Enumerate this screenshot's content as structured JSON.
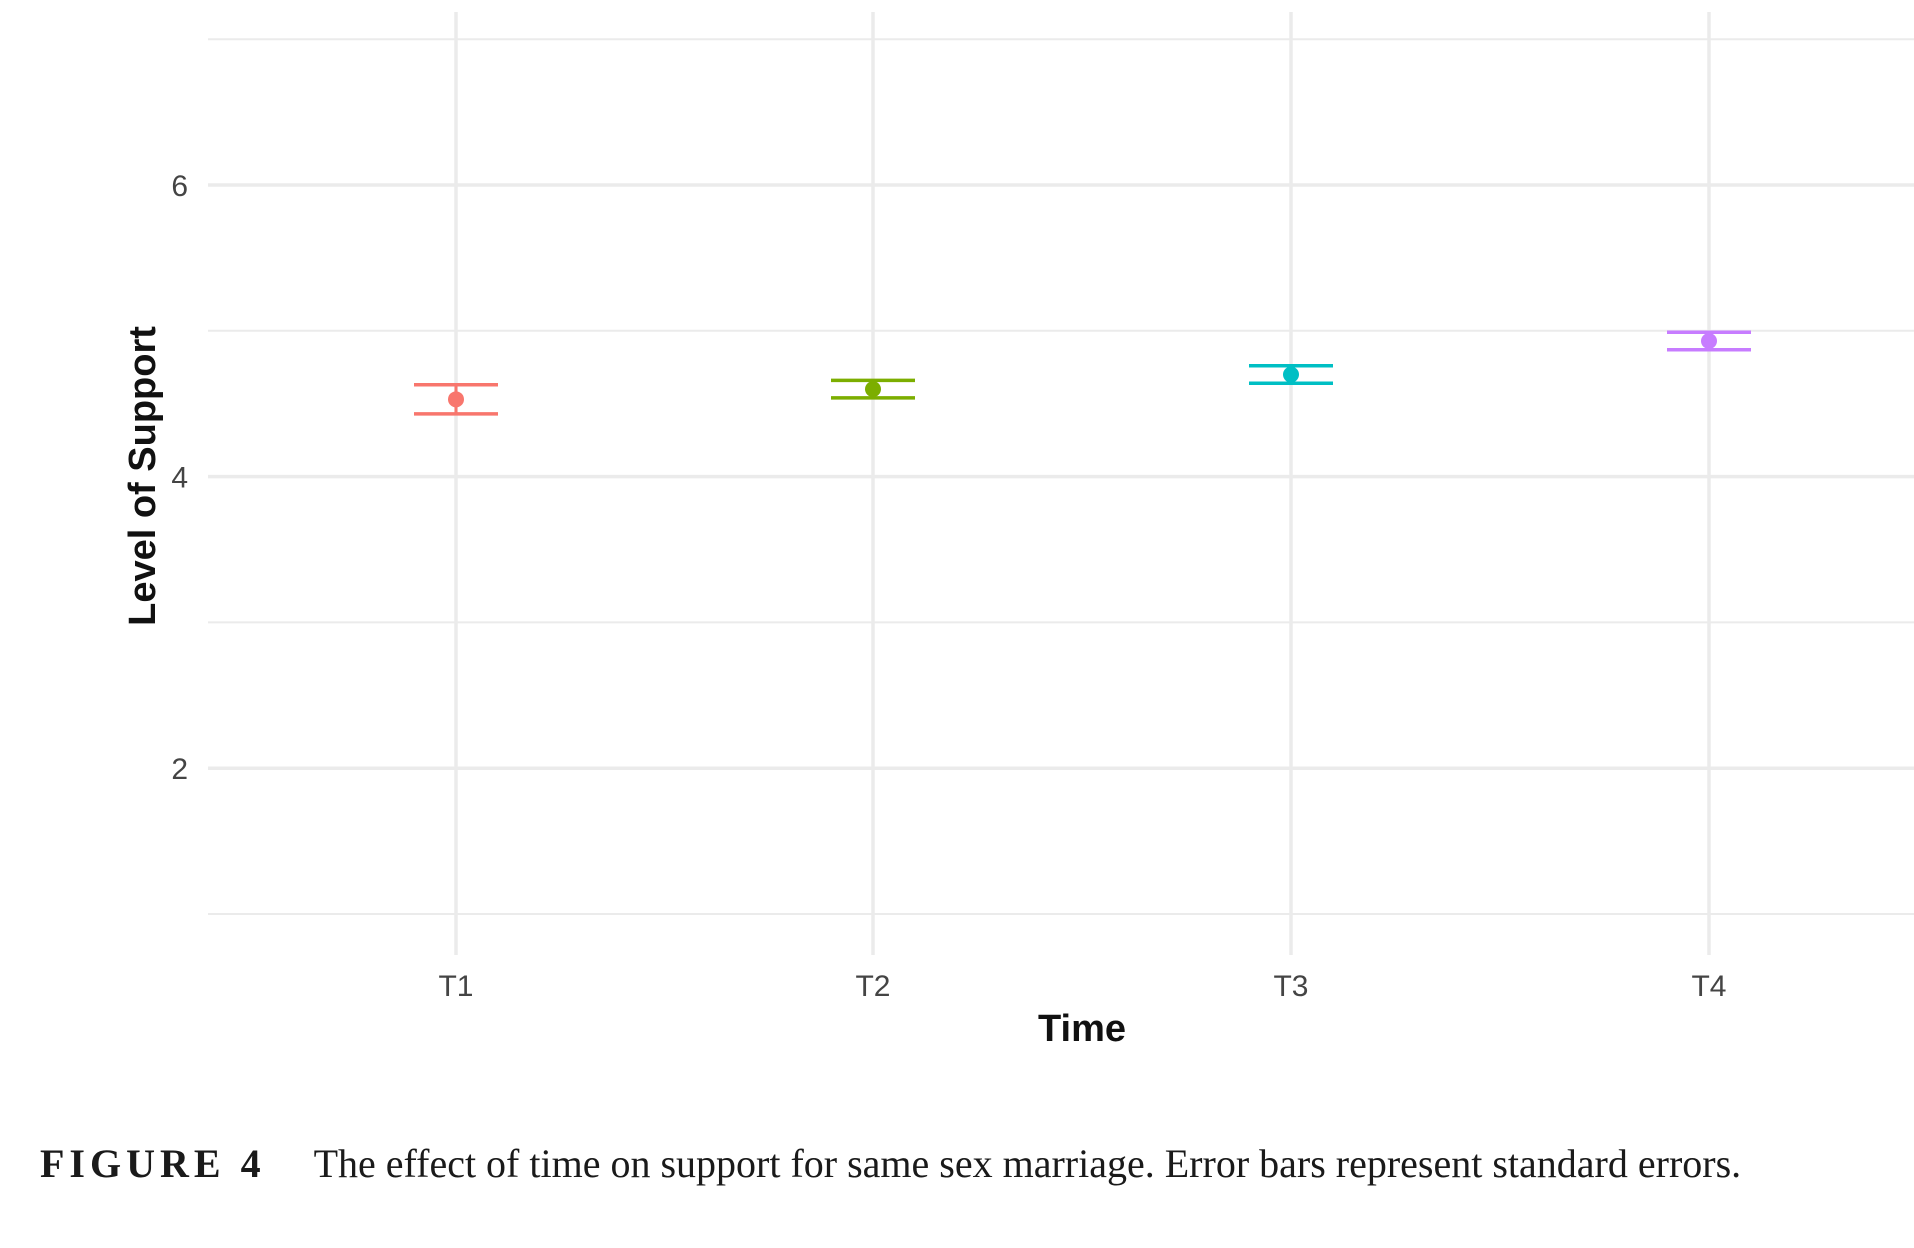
{
  "chart_data": {
    "type": "scatter",
    "categories": [
      "T1",
      "T2",
      "T3",
      "T4"
    ],
    "series": [
      {
        "points": [
          {
            "x": "T1",
            "y": 4.53,
            "lower": 4.43,
            "upper": 4.63,
            "color": "#F8766D"
          },
          {
            "x": "T2",
            "y": 4.6,
            "lower": 4.54,
            "upper": 4.66,
            "color": "#7CAE00"
          },
          {
            "x": "T3",
            "y": 4.7,
            "lower": 4.64,
            "upper": 4.76,
            "color": "#00BFC4"
          },
          {
            "x": "T4",
            "y": 4.93,
            "lower": 4.87,
            "upper": 4.99,
            "color": "#C77CFF"
          }
        ]
      }
    ],
    "xlabel": "Time",
    "ylabel": "Level of Support",
    "ylim": [
      1,
      7
    ],
    "yticks": [
      2,
      4,
      6
    ],
    "grid": true,
    "legend": "none"
  },
  "caption": {
    "label": "FIGURE 4",
    "text": "The effect of time on support for same sex marriage. Error bars represent standard errors."
  }
}
